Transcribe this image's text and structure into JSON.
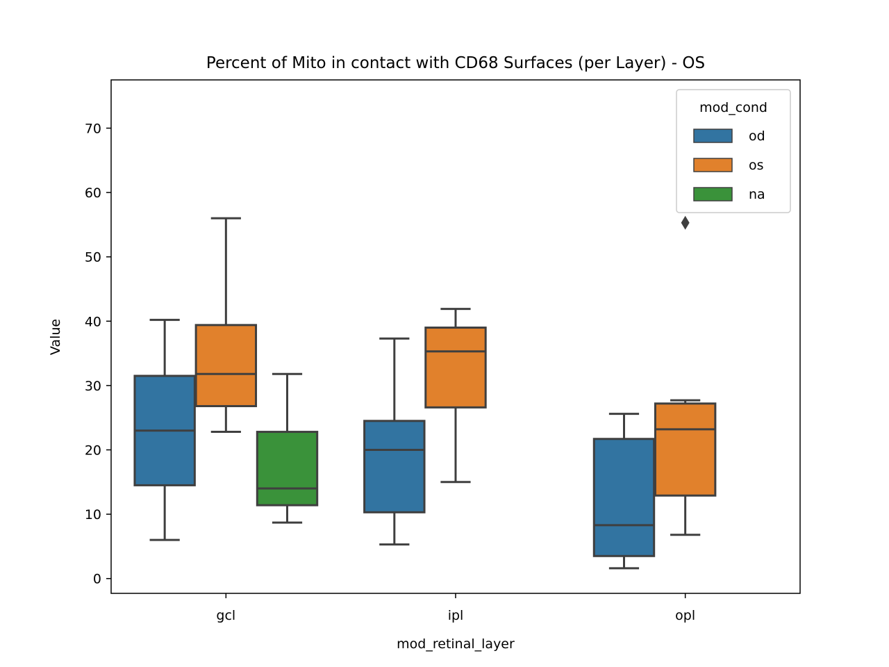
{
  "chart_data": {
    "type": "box",
    "title": "Percent of Mito in contact with CD68 Surfaces (per Layer) - OS",
    "xlabel": "mod_retinal_layer",
    "ylabel": "Value",
    "categories": [
      "gcl",
      "ipl",
      "opl"
    ],
    "ylim": [
      -2.3,
      77.5
    ],
    "yticks": [
      0,
      10,
      20,
      30,
      40,
      50,
      60,
      70
    ],
    "grid": false,
    "legend": {
      "title": "mod_cond",
      "placement": "upper-right",
      "entries": [
        "od",
        "os",
        "na"
      ]
    },
    "colors": {
      "od": "#3274a1",
      "os": "#e1812c",
      "na": "#3a923a",
      "edge": "#3f3f3f"
    },
    "series": [
      {
        "name": "od",
        "boxes": [
          {
            "category": "gcl",
            "whislo": 6.0,
            "q1": 14.5,
            "med": 23.0,
            "q3": 31.5,
            "whishi": 40.2,
            "fliers": []
          },
          {
            "category": "ipl",
            "whislo": 5.3,
            "q1": 10.3,
            "med": 20.0,
            "q3": 24.5,
            "whishi": 37.3,
            "fliers": []
          },
          {
            "category": "opl",
            "whislo": 1.6,
            "q1": 3.5,
            "med": 8.3,
            "q3": 21.7,
            "whishi": 25.6,
            "fliers": []
          }
        ]
      },
      {
        "name": "os",
        "boxes": [
          {
            "category": "gcl",
            "whislo": 22.8,
            "q1": 26.8,
            "med": 31.8,
            "q3": 39.4,
            "whishi": 56.0,
            "fliers": []
          },
          {
            "category": "ipl",
            "whislo": 15.0,
            "q1": 26.6,
            "med": 35.3,
            "q3": 39.0,
            "whishi": 41.9,
            "fliers": []
          },
          {
            "category": "opl",
            "whislo": 6.8,
            "q1": 12.9,
            "med": 23.2,
            "q3": 27.2,
            "whishi": 27.7,
            "fliers": [
              55.3
            ]
          }
        ]
      },
      {
        "name": "na",
        "boxes": [
          {
            "category": "gcl",
            "whislo": 8.7,
            "q1": 11.4,
            "med": 14.0,
            "q3": 22.8,
            "whishi": 31.8,
            "fliers": []
          }
        ]
      }
    ]
  }
}
